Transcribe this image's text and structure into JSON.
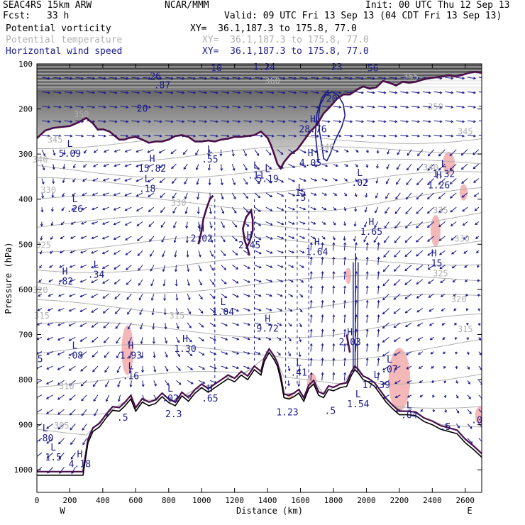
{
  "header": {
    "model": "SEAC4RS 15km ARW",
    "org": "NCAR/MMM",
    "init": "Init: 00 UTC Thu 12 Sep 13",
    "fcst_label": "Fcst:",
    "fcst_value": "33 h",
    "valid": "Valid: 09 UTC Fri 13 Sep 13 (04 CDT Fri 13 Sep 13)",
    "fields": [
      {
        "name": "Potential vorticity",
        "xy": "XY=  36.1,187.3 to 175.8, 77.0"
      },
      {
        "name": "Potential temperature",
        "xy": "XY=  36.1,187.3 to 175.8, 77.0"
      },
      {
        "name": "Horizontal wind speed",
        "xy": "XY=  36.1,187.3 to 175.8, 77.0"
      }
    ]
  },
  "colors": {
    "pv": "#000000",
    "theta": "#b0b0b0",
    "wind": "#1a1a8c",
    "pv_contour": "#4a0f4a",
    "terrain": "#000000",
    "pink": "#f4b8b8"
  },
  "chart_data": {
    "type": "cross-section",
    "xlabel": "Distance (km)",
    "ylabel": "Pressure (hPa)",
    "xlim": [
      0,
      2700
    ],
    "ylim": [
      1050,
      100
    ],
    "xticks": [
      0,
      200,
      400,
      600,
      800,
      1000,
      1200,
      1400,
      1600,
      1800,
      2000,
      2200,
      2400,
      2600
    ],
    "yticks": [
      100,
      200,
      300,
      400,
      500,
      600,
      700,
      800,
      900,
      1000
    ],
    "end_labels": {
      "left": "W",
      "right": "E"
    },
    "theta_labels": [
      {
        "x": 270,
        "p": 212,
        "t": "350"
      },
      {
        "x": 1430,
        "p": 138,
        "t": "360"
      },
      {
        "x": 2270,
        "p": 128,
        "t": "355"
      },
      {
        "x": 2420,
        "p": 195,
        "t": "350"
      },
      {
        "x": 2600,
        "p": 250,
        "t": "345"
      },
      {
        "x": 1760,
        "p": 285,
        "t": "340"
      },
      {
        "x": 2390,
        "p": 330,
        "t": "340"
      },
      {
        "x": 110,
        "p": 268,
        "t": "345"
      },
      {
        "x": 20,
        "p": 312,
        "t": "340"
      },
      {
        "x": 70,
        "p": 380,
        "t": "330"
      },
      {
        "x": 860,
        "p": 408,
        "t": "330"
      },
      {
        "x": 2450,
        "p": 425,
        "t": "335"
      },
      {
        "x": 2580,
        "p": 488,
        "t": "330"
      },
      {
        "x": 40,
        "p": 502,
        "t": "325"
      },
      {
        "x": 2450,
        "p": 565,
        "t": "325"
      },
      {
        "x": 20,
        "p": 602,
        "t": "320"
      },
      {
        "x": 2560,
        "p": 622,
        "t": "320"
      },
      {
        "x": 30,
        "p": 658,
        "t": "315"
      },
      {
        "x": 850,
        "p": 658,
        "t": "315"
      },
      {
        "x": 2600,
        "p": 688,
        "t": "315"
      },
      {
        "x": 180,
        "p": 815,
        "t": "310"
      },
      {
        "x": 150,
        "p": 902,
        "t": "305"
      }
    ],
    "extrema": [
      {
        "x": 200,
        "p": 287,
        "k": "L",
        "v": "5.09"
      },
      {
        "x": 700,
        "p": 320,
        "k": "H",
        "v": "15.82"
      },
      {
        "x": 1050,
        "p": 300,
        "k": "L",
        "v": ".55"
      },
      {
        "x": 670,
        "p": 365,
        "k": "L",
        "v": ".18"
      },
      {
        "x": 1400,
        "p": 343,
        "k": "L",
        "v": "5.19"
      },
      {
        "x": 1330,
        "p": 335,
        "k": "L",
        "v": ".11"
      },
      {
        "x": 1660,
        "p": 308,
        "k": "H",
        "v": "4.05"
      },
      {
        "x": 1600,
        "p": 385,
        "k": "L",
        "v": ".5"
      },
      {
        "x": 1675,
        "p": 233,
        "k": "H",
        "v": "28.76"
      },
      {
        "x": 1960,
        "p": 352,
        "k": "L",
        "v": ".02"
      },
      {
        "x": 2470,
        "p": 332,
        "k": "L",
        "v": "1.32"
      },
      {
        "x": 2440,
        "p": 357,
        "k": "H",
        "v": "1.26"
      },
      {
        "x": 230,
        "p": 410,
        "k": "L",
        "v": ".26"
      },
      {
        "x": 1000,
        "p": 475,
        "k": "H",
        "v": "2.02"
      },
      {
        "x": 1290,
        "p": 490,
        "k": "H",
        "v": "2.45"
      },
      {
        "x": 1700,
        "p": 505,
        "k": "H",
        "v": "1.64"
      },
      {
        "x": 2030,
        "p": 460,
        "k": "H",
        "v": "1.65"
      },
      {
        "x": 2410,
        "p": 530,
        "k": "H",
        "v": ".15"
      },
      {
        "x": 170,
        "p": 570,
        "k": "H",
        "v": ".82"
      },
      {
        "x": 360,
        "p": 555,
        "k": "L",
        "v": ".34"
      },
      {
        "x": 1130,
        "p": 638,
        "k": "L",
        "v": "1.04"
      },
      {
        "x": 1400,
        "p": 675,
        "k": "H",
        "v": "9.72"
      },
      {
        "x": 900,
        "p": 720,
        "k": "H",
        "v": "1.30"
      },
      {
        "x": 230,
        "p": 735,
        "k": "L",
        "v": ".08"
      },
      {
        "x": 570,
        "p": 735,
        "k": "H",
        "v": "1.93"
      },
      {
        "x": 570,
        "p": 780,
        "k": "L",
        "v": ".16"
      },
      {
        "x": 1900,
        "p": 705,
        "k": "H",
        "v": "2.03"
      },
      {
        "x": 1590,
        "p": 772,
        "k": "L",
        "v": ".41"
      },
      {
        "x": 2060,
        "p": 800,
        "k": "L",
        "v": "17.39"
      },
      {
        "x": 2140,
        "p": 765,
        "k": "L",
        "v": ".07"
      },
      {
        "x": 810,
        "p": 830,
        "k": "L",
        "v": ".02"
      },
      {
        "x": 1050,
        "p": 830,
        "k": "H",
        "v": ".65"
      },
      {
        "x": 1950,
        "p": 842,
        "k": "L",
        "v": "1.54"
      },
      {
        "x": 2260,
        "p": 867,
        "k": "L",
        "v": ".04"
      },
      {
        "x": 50,
        "p": 918,
        "k": "L",
        "v": ".80"
      },
      {
        "x": 100,
        "p": 960,
        "k": "L",
        "v": "1.5"
      },
      {
        "x": 260,
        "p": 975,
        "k": "H",
        "v": "4.18"
      }
    ],
    "labels_misc": [
      {
        "x": 720,
        "p": 128,
        "t": "26"
      },
      {
        "x": 760,
        "p": 148,
        "t": ".87"
      },
      {
        "x": 1090,
        "p": 110,
        "t": "10"
      },
      {
        "x": 1380,
        "p": 108,
        "t": "1.24"
      },
      {
        "x": 1820,
        "p": 108,
        "t": "23"
      },
      {
        "x": 2040,
        "p": 110,
        "t": "56"
      },
      {
        "x": 640,
        "p": 200,
        "t": "20"
      },
      {
        "x": 1790,
        "p": 178,
        "t": "20"
      },
      {
        "x": 700,
        "p": 1,
        "t": ""
      },
      {
        "x": 1600,
        "p": 386,
        "t": "15"
      },
      {
        "x": 1520,
        "p": 873,
        "t": "1.23"
      },
      {
        "x": 1780,
        "p": 870,
        "t": ".5"
      },
      {
        "x": 830,
        "p": 877,
        "t": "2.3"
      },
      {
        "x": 520,
        "p": 885,
        "t": ".5"
      },
      {
        "x": 2480,
        "p": 905,
        "t": ".5"
      },
      {
        "x": 2700,
        "p": 890,
        "t": ".0"
      },
      {
        "x": 20,
        "p": 755,
        "t": "5"
      }
    ],
    "terrain_profile": [
      [
        0,
        1012
      ],
      [
        280,
        1012
      ],
      [
        310,
        940
      ],
      [
        340,
        915
      ],
      [
        380,
        905
      ],
      [
        420,
        885
      ],
      [
        460,
        868
      ],
      [
        500,
        870
      ],
      [
        530,
        860
      ],
      [
        570,
        843
      ],
      [
        600,
        870
      ],
      [
        640,
        850
      ],
      [
        680,
        858
      ],
      [
        720,
        853
      ],
      [
        760,
        838
      ],
      [
        800,
        851
      ],
      [
        840,
        858
      ],
      [
        880,
        836
      ],
      [
        920,
        848
      ],
      [
        960,
        830
      ],
      [
        1000,
        818
      ],
      [
        1040,
        828
      ],
      [
        1080,
        818
      ],
      [
        1120,
        808
      ],
      [
        1160,
        798
      ],
      [
        1200,
        805
      ],
      [
        1240,
        790
      ],
      [
        1280,
        800
      ],
      [
        1320,
        778
      ],
      [
        1360,
        790
      ],
      [
        1380,
        760
      ],
      [
        1410,
        740
      ],
      [
        1440,
        756
      ],
      [
        1460,
        770
      ],
      [
        1480,
        800
      ],
      [
        1500,
        840
      ],
      [
        1530,
        843
      ],
      [
        1560,
        838
      ],
      [
        1590,
        830
      ],
      [
        1620,
        848
      ],
      [
        1650,
        820
      ],
      [
        1680,
        810
      ],
      [
        1710,
        835
      ],
      [
        1740,
        840
      ],
      [
        1770,
        822
      ],
      [
        1800,
        825
      ],
      [
        1840,
        818
      ],
      [
        1880,
        815
      ],
      [
        1910,
        790
      ],
      [
        1930,
        778
      ],
      [
        1950,
        785
      ],
      [
        1980,
        800
      ],
      [
        2010,
        805
      ],
      [
        2050,
        815
      ],
      [
        2080,
        830
      ],
      [
        2120,
        850
      ],
      [
        2160,
        865
      ],
      [
        2200,
        878
      ],
      [
        2250,
        878
      ],
      [
        2300,
        880
      ],
      [
        2350,
        893
      ],
      [
        2400,
        900
      ],
      [
        2450,
        910
      ],
      [
        2500,
        915
      ],
      [
        2550,
        920
      ],
      [
        2600,
        940
      ],
      [
        2650,
        955
      ],
      [
        2700,
        972
      ]
    ],
    "pv_line_upper": [
      [
        0,
        265
      ],
      [
        50,
        248
      ],
      [
        100,
        242
      ],
      [
        150,
        240
      ],
      [
        200,
        238
      ],
      [
        250,
        230
      ],
      [
        300,
        220
      ],
      [
        340,
        232
      ],
      [
        370,
        246
      ],
      [
        400,
        245
      ],
      [
        440,
        250
      ],
      [
        480,
        262
      ],
      [
        500,
        268
      ],
      [
        530,
        268
      ],
      [
        560,
        264
      ],
      [
        600,
        262
      ],
      [
        640,
        268
      ],
      [
        680,
        275
      ],
      [
        720,
        272
      ],
      [
        760,
        272
      ],
      [
        800,
        268
      ],
      [
        840,
        260
      ],
      [
        880,
        258
      ],
      [
        920,
        262
      ],
      [
        960,
        272
      ],
      [
        1000,
        272
      ],
      [
        1040,
        270
      ],
      [
        1080,
        272
      ],
      [
        1120,
        268
      ],
      [
        1160,
        266
      ],
      [
        1200,
        262
      ],
      [
        1240,
        262
      ],
      [
        1280,
        260
      ],
      [
        1320,
        258
      ],
      [
        1360,
        250
      ],
      [
        1400,
        264
      ],
      [
        1420,
        280
      ],
      [
        1440,
        300
      ],
      [
        1460,
        322
      ],
      [
        1480,
        332
      ],
      [
        1500,
        318
      ],
      [
        1540,
        300
      ],
      [
        1580,
        290
      ],
      [
        1620,
        270
      ],
      [
        1660,
        250
      ],
      [
        1700,
        235
      ],
      [
        1740,
        210
      ],
      [
        1780,
        195
      ],
      [
        1820,
        178
      ],
      [
        1860,
        168
      ],
      [
        1900,
        168
      ],
      [
        1940,
        158
      ],
      [
        1980,
        150
      ],
      [
        2020,
        155
      ],
      [
        2060,
        152
      ],
      [
        2100,
        138
      ],
      [
        2140,
        142
      ],
      [
        2180,
        148
      ],
      [
        2220,
        140
      ],
      [
        2260,
        142
      ],
      [
        2300,
        140
      ],
      [
        2340,
        135
      ],
      [
        2380,
        132
      ],
      [
        2420,
        130
      ],
      [
        2460,
        128
      ],
      [
        2500,
        126
      ],
      [
        2540,
        128
      ],
      [
        2580,
        125
      ],
      [
        2620,
        120
      ],
      [
        2660,
        118
      ],
      [
        2700,
        120
      ]
    ],
    "pv_loops": [
      [
        [
          980,
          500
        ],
        [
          1000,
          470
        ],
        [
          1010,
          445
        ],
        [
          1030,
          420
        ],
        [
          1050,
          400
        ],
        [
          1070,
          392
        ]
      ],
      [
        [
          1270,
          510
        ],
        [
          1290,
          495
        ],
        [
          1310,
          470
        ],
        [
          1310,
          445
        ],
        [
          1300,
          425
        ],
        [
          1270,
          440
        ],
        [
          1250,
          465
        ],
        [
          1260,
          490
        ],
        [
          1280,
          510
        ],
        [
          1290,
          525
        ]
      ],
      [
        [
          1900,
          740
        ],
        [
          1890,
          720
        ],
        [
          1880,
          700
        ]
      ]
    ],
    "wind_contours": [
      [
        [
          1730,
          280
        ],
        [
          1715,
          250
        ],
        [
          1710,
          215
        ],
        [
          1720,
          190
        ],
        [
          1750,
          170
        ],
        [
          1790,
          162
        ],
        [
          1830,
          170
        ],
        [
          1860,
          190
        ],
        [
          1870,
          215
        ],
        [
          1850,
          240
        ],
        [
          1810,
          270
        ],
        [
          1780,
          300
        ],
        [
          1760,
          315
        ],
        [
          1740,
          310
        ],
        [
          1730,
          280
        ]
      ],
      [
        [
          1710,
          320
        ],
        [
          1700,
          290
        ],
        [
          1690,
          255
        ],
        [
          1700,
          210
        ],
        [
          1730,
          175
        ],
        [
          1770,
          158
        ]
      ]
    ],
    "pink_patches": [
      {
        "x": 550,
        "p": 735,
        "rx": 12,
        "rp": 55
      },
      {
        "x": 2200,
        "p": 800,
        "rx": 22,
        "rp": 70
      },
      {
        "x": 2590,
        "p": 385,
        "rx": 8,
        "rp": 18
      },
      {
        "x": 2420,
        "p": 470,
        "rx": 10,
        "rp": 35
      },
      {
        "x": 2500,
        "p": 320,
        "rx": 12,
        "rp": 25
      },
      {
        "x": 1670,
        "p": 810,
        "rx": 10,
        "rp": 25
      },
      {
        "x": 1540,
        "p": 845,
        "rx": 8,
        "rp": 15
      },
      {
        "x": 1890,
        "p": 570,
        "rx": 6,
        "rp": 18
      },
      {
        "x": 2690,
        "p": 880,
        "rx": 10,
        "rp": 20
      }
    ]
  }
}
